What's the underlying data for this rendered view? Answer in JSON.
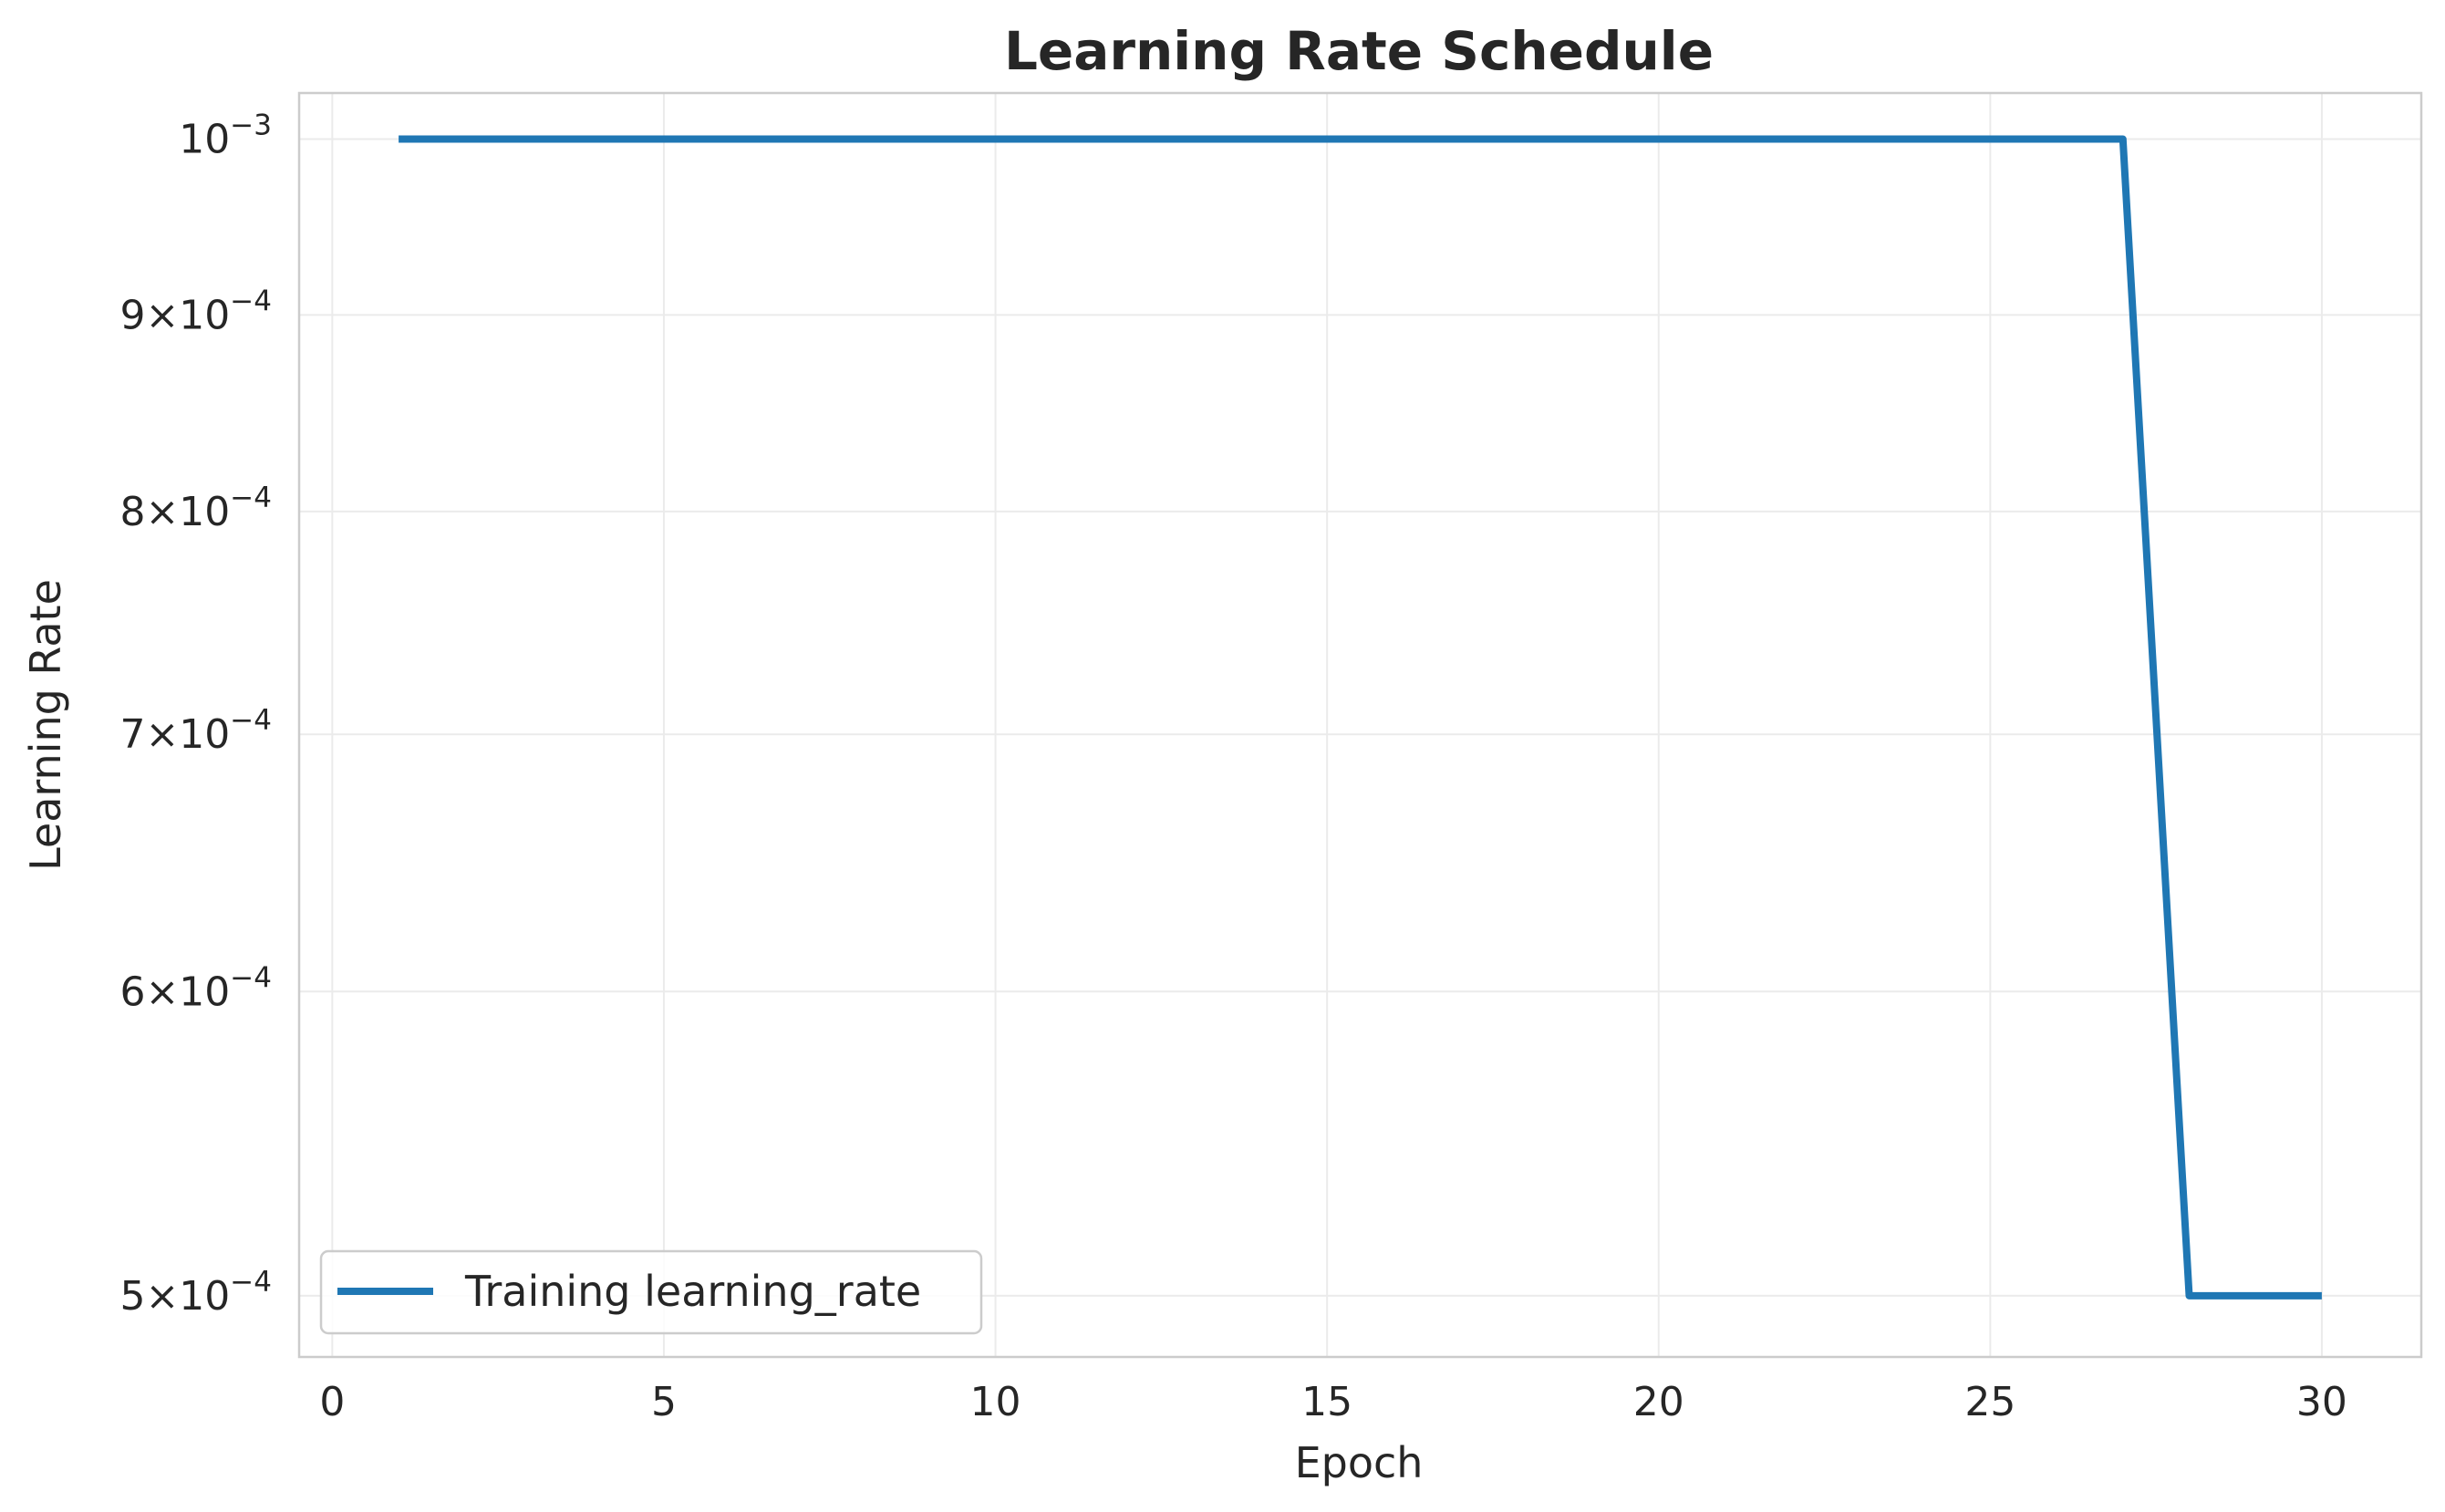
{
  "chart_data": {
    "type": "line",
    "title": "Learning Rate Schedule",
    "xlabel": "Epoch",
    "ylabel": "Learning Rate",
    "xlim": [
      -0.5,
      31.5
    ],
    "ylim": [
      0.000482,
      0.001028
    ],
    "yscale": "log",
    "grid": true,
    "legend_position": "lower-left",
    "xticks": [
      0,
      5,
      10,
      15,
      20,
      25,
      30
    ],
    "yticks": [
      {
        "value": 0.001,
        "mantissa": "",
        "exponent": "−3"
      },
      {
        "value": 0.0009,
        "mantissa": "9",
        "exponent": "−4"
      },
      {
        "value": 0.0008,
        "mantissa": "8",
        "exponent": "−4"
      },
      {
        "value": 0.0007,
        "mantissa": "7",
        "exponent": "−4"
      },
      {
        "value": 0.0006,
        "mantissa": "6",
        "exponent": "−4"
      },
      {
        "value": 0.0005,
        "mantissa": "5",
        "exponent": "−4"
      }
    ],
    "series": [
      {
        "name": "Training learning_rate",
        "color": "#1f77b4",
        "x": [
          1,
          2,
          3,
          4,
          5,
          6,
          7,
          8,
          9,
          10,
          11,
          12,
          13,
          14,
          15,
          16,
          17,
          18,
          19,
          20,
          21,
          22,
          23,
          24,
          25,
          26,
          27,
          28,
          29,
          30
        ],
        "y": [
          0.001,
          0.001,
          0.001,
          0.001,
          0.001,
          0.001,
          0.001,
          0.001,
          0.001,
          0.001,
          0.001,
          0.001,
          0.001,
          0.001,
          0.001,
          0.001,
          0.001,
          0.001,
          0.001,
          0.001,
          0.001,
          0.001,
          0.001,
          0.001,
          0.001,
          0.001,
          0.001,
          0.0005,
          0.0005,
          0.0005
        ]
      }
    ]
  }
}
